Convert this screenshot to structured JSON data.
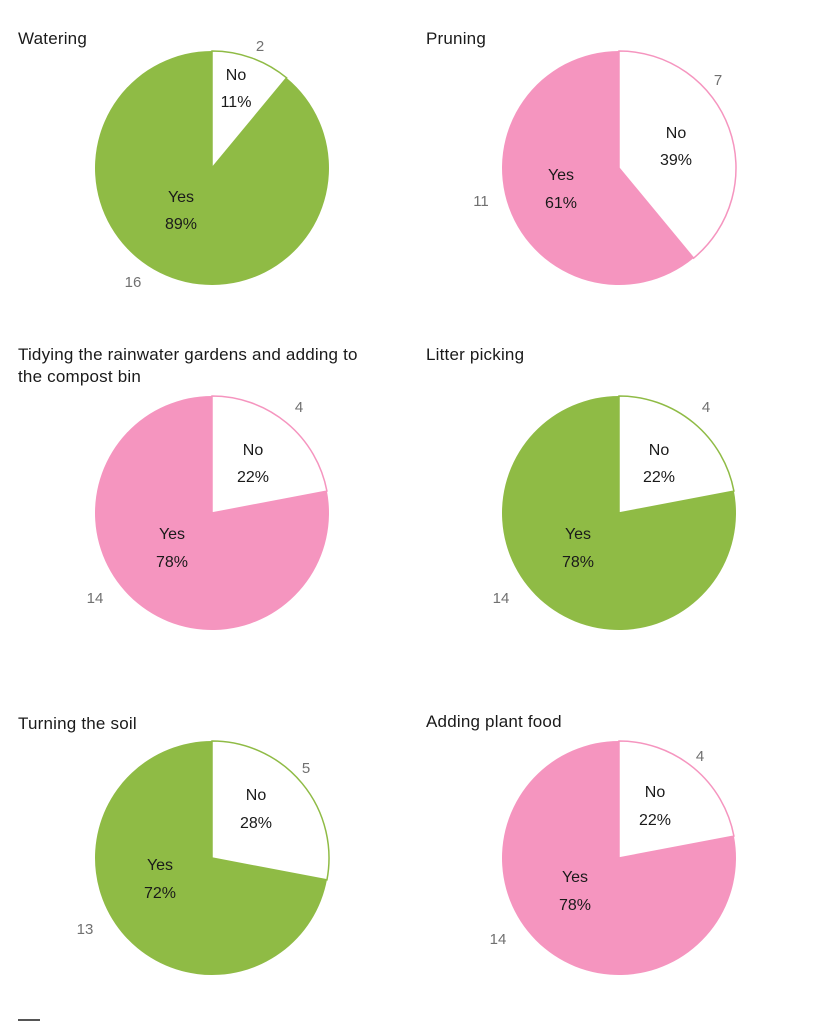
{
  "colors": {
    "green": "#8fbb45",
    "pink": "#f595bf",
    "no_fill": "#ffffff"
  },
  "chart_data": [
    {
      "type": "pie",
      "title": "Watering",
      "color": "green",
      "slices": [
        {
          "label": "No",
          "percent_label": "11%",
          "count": 2,
          "value": 11
        },
        {
          "label": "Yes",
          "percent_label": "89%",
          "count": 16,
          "value": 89
        }
      ]
    },
    {
      "type": "pie",
      "title": "Pruning",
      "color": "pink",
      "slices": [
        {
          "label": "No",
          "percent_label": "39%",
          "count": 7,
          "value": 39
        },
        {
          "label": "Yes",
          "percent_label": "61%",
          "count": 11,
          "value": 61
        }
      ]
    },
    {
      "type": "pie",
      "title": "Tidying the rainwater gardens and adding to\nthe compost bin",
      "color": "pink",
      "slices": [
        {
          "label": "No",
          "percent_label": "22%",
          "count": 4,
          "value": 22
        },
        {
          "label": "Yes",
          "percent_label": "78%",
          "count": 14,
          "value": 78
        }
      ]
    },
    {
      "type": "pie",
      "title": "Litter picking",
      "color": "green",
      "slices": [
        {
          "label": "No",
          "percent_label": "22%",
          "count": 4,
          "value": 22
        },
        {
          "label": "Yes",
          "percent_label": "78%",
          "count": 14,
          "value": 78
        }
      ]
    },
    {
      "type": "pie",
      "title": "Turning the soil",
      "color": "green",
      "slices": [
        {
          "label": "No",
          "percent_label": "28%",
          "count": 5,
          "value": 28
        },
        {
          "label": "Yes",
          "percent_label": "72%",
          "count": 13,
          "value": 72
        }
      ]
    },
    {
      "type": "pie",
      "title": "Adding plant food",
      "color": "pink",
      "slices": [
        {
          "label": "No",
          "percent_label": "22%",
          "count": 4,
          "value": 22
        },
        {
          "label": "Yes",
          "percent_label": "78%",
          "count": 14,
          "value": 78
        }
      ]
    }
  ]
}
